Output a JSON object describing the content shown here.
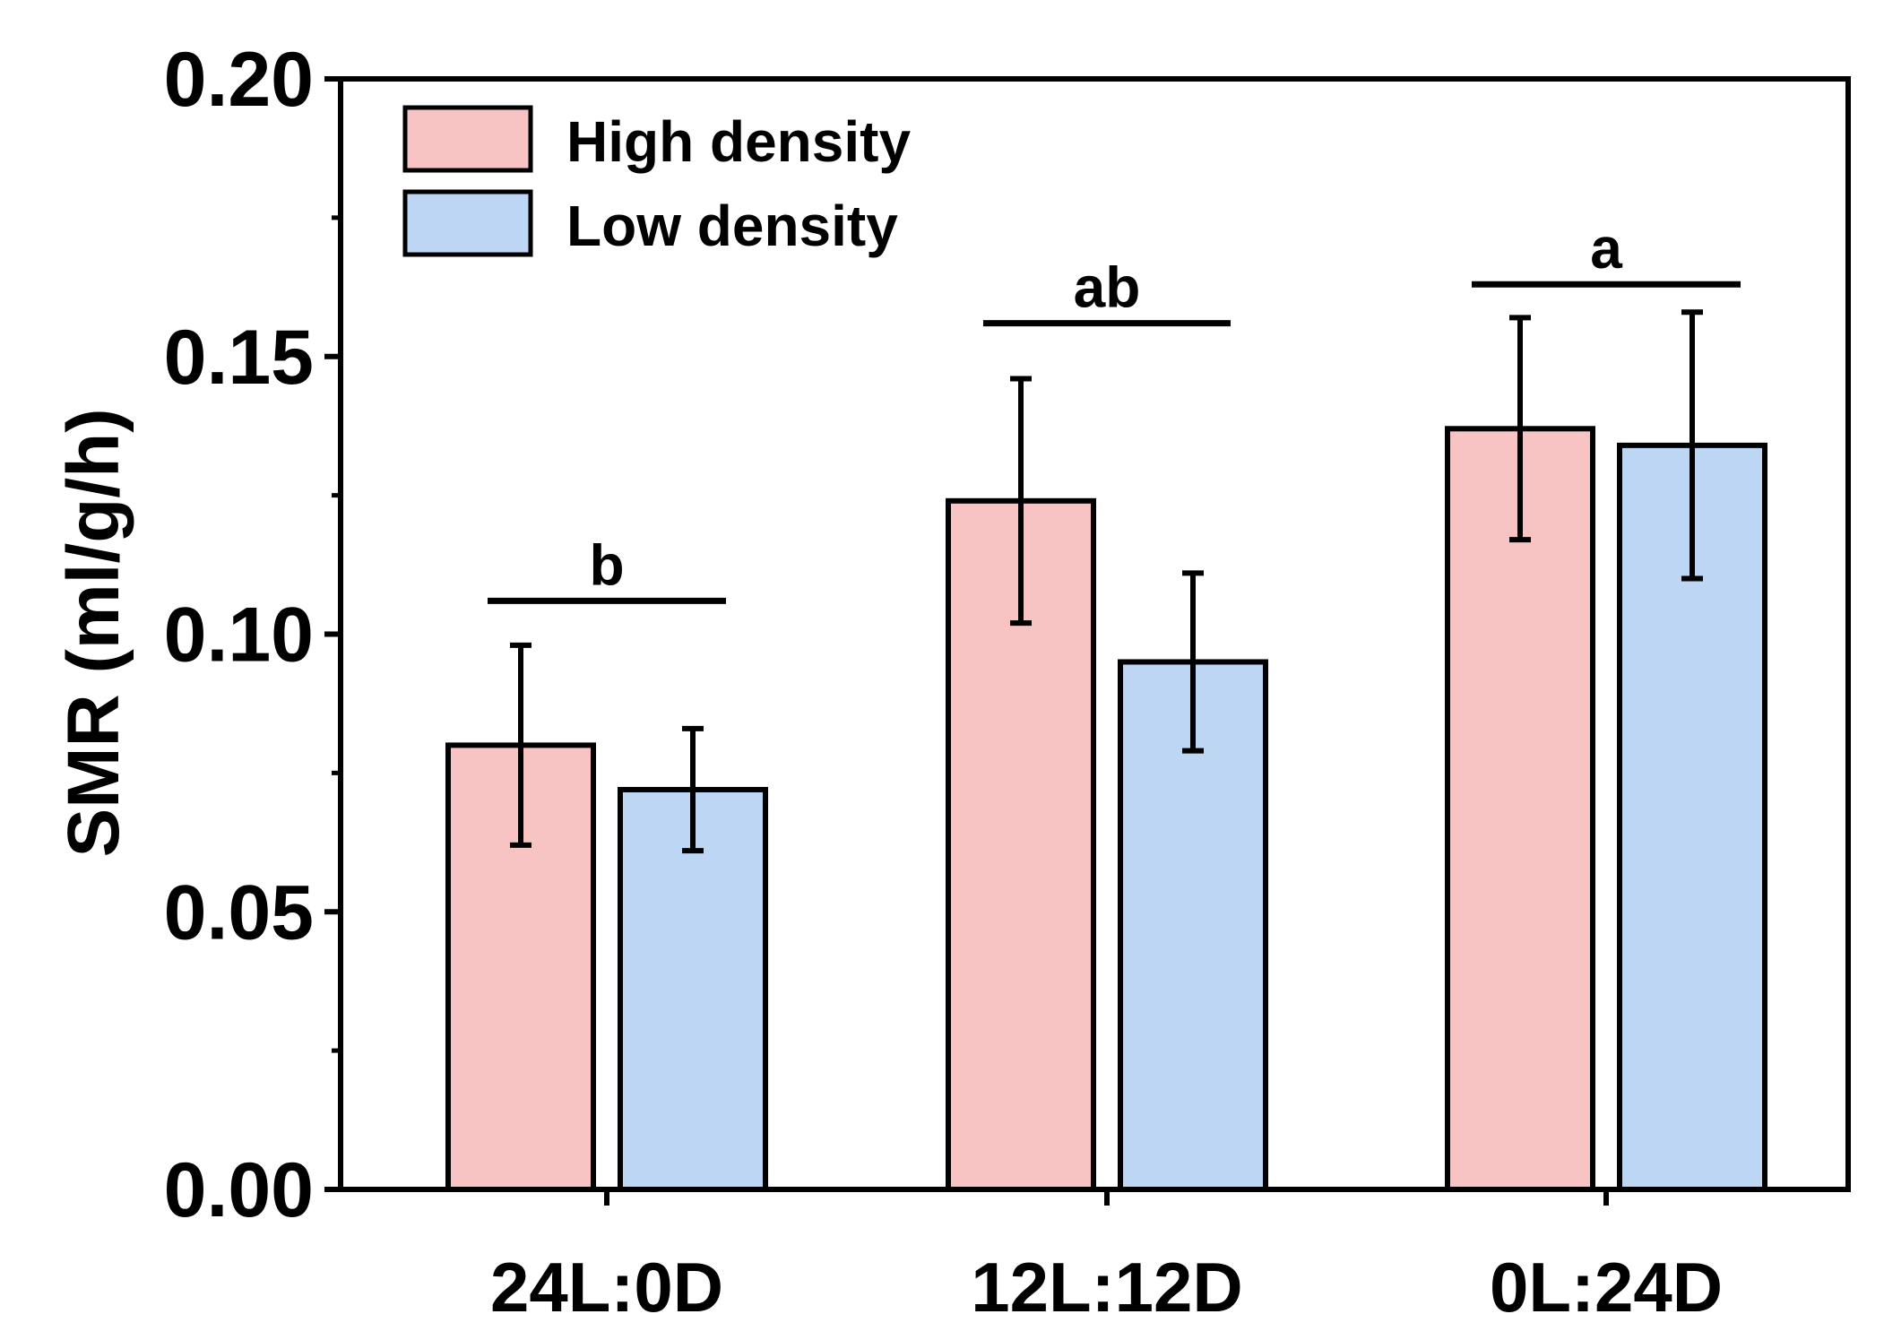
{
  "chart_data": {
    "type": "bar",
    "title": "",
    "xlabel": "",
    "ylabel": "SMR (ml/g/h)",
    "ylim": [
      0,
      0.2
    ],
    "yticks": [
      "0.00",
      "0.05",
      "0.10",
      "0.15",
      "0.20"
    ],
    "ytick_values": [
      0,
      0.05,
      0.1,
      0.15,
      0.2
    ],
    "minor_ticks": [
      0.025,
      0.075,
      0.125,
      0.175
    ],
    "categories": [
      "24L:0D",
      "12L:12D",
      "0L:24D"
    ],
    "legend_position": "top-left",
    "series": [
      {
        "name": "High density",
        "color": "#f8c3c3",
        "values": [
          0.08,
          0.124,
          0.137
        ],
        "errors": [
          0.018,
          0.022,
          0.02
        ]
      },
      {
        "name": "Low density",
        "color": "#bcd6f4",
        "values": [
          0.072,
          0.095,
          0.134
        ],
        "errors": [
          0.011,
          0.016,
          0.024
        ]
      }
    ],
    "significance": [
      {
        "label": "b",
        "y": 0.106
      },
      {
        "label": "ab",
        "y": 0.156
      },
      {
        "label": "a",
        "y": 0.163
      }
    ]
  }
}
